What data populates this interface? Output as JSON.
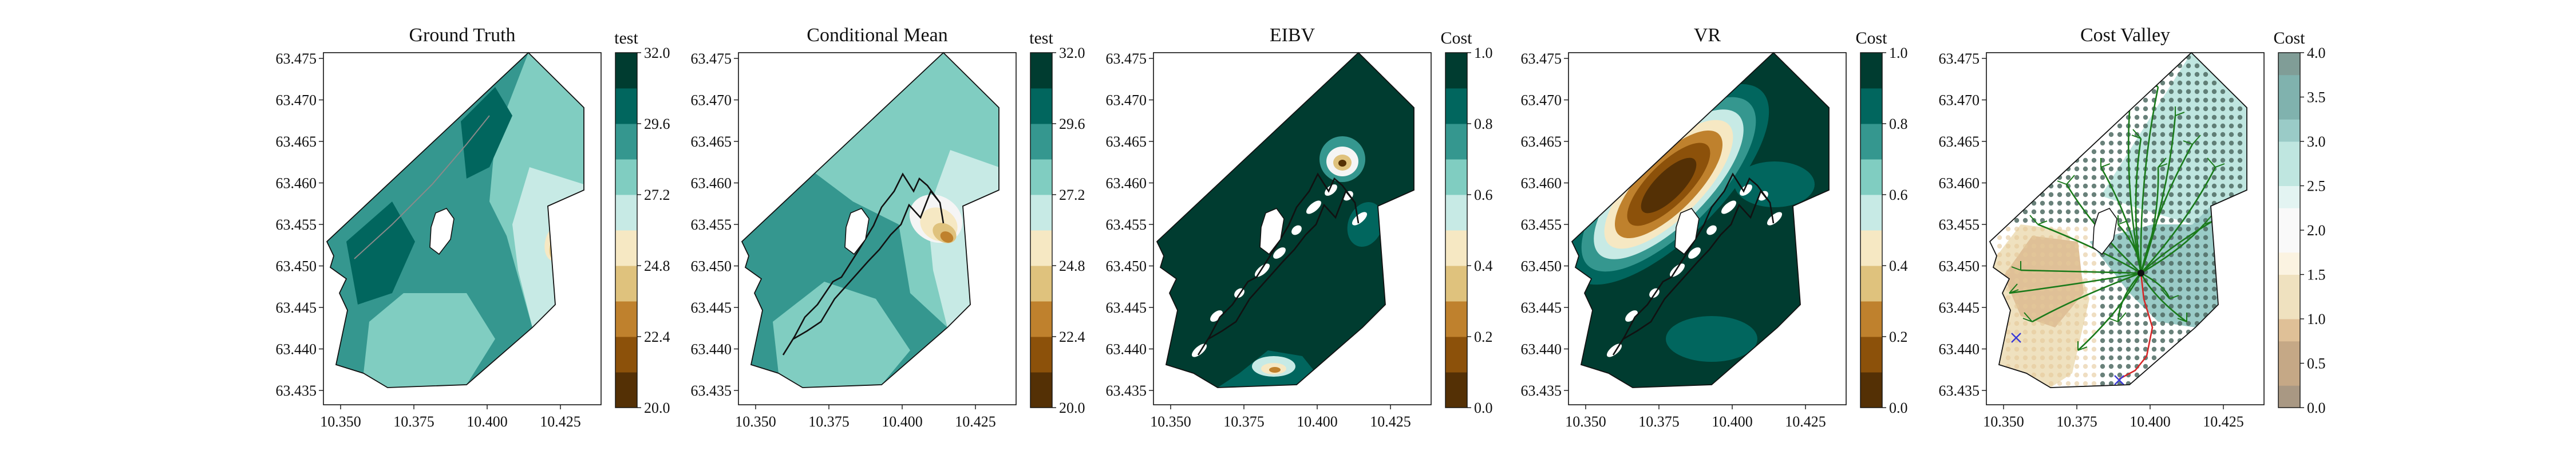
{
  "figure": {
    "panels": [
      {
        "title": "Ground Truth",
        "cbar_label": "test",
        "cbar_ticks": [
          "20.0",
          "22.4",
          "24.8",
          "27.2",
          "29.6",
          "32.0"
        ],
        "cbar_palette": "brbg",
        "field": "truth",
        "overlay": "truth"
      },
      {
        "title": "Conditional Mean",
        "cbar_label": "test",
        "cbar_ticks": [
          "20.0",
          "22.4",
          "24.8",
          "27.2",
          "29.6",
          "32.0"
        ],
        "cbar_palette": "brbg",
        "field": "mean",
        "overlay": "paths"
      },
      {
        "title": "EIBV",
        "cbar_label": "Cost",
        "cbar_ticks": [
          "0.0",
          "0.2",
          "0.4",
          "0.6",
          "0.8",
          "1.0"
        ],
        "cbar_palette": "brbg",
        "field": "eibv",
        "overlay": "paths-white"
      },
      {
        "title": "VR",
        "cbar_label": "Cost",
        "cbar_ticks": [
          "0.0",
          "0.2",
          "0.4",
          "0.6",
          "0.8",
          "1.0"
        ],
        "cbar_palette": "brbg",
        "field": "vr",
        "overlay": "paths-white"
      },
      {
        "title": "Cost Valley",
        "cbar_label": "Cost",
        "cbar_ticks": [
          "0.0",
          "0.5",
          "1.0",
          "1.5",
          "2.0",
          "2.5",
          "3.0",
          "3.5",
          "4.0"
        ],
        "cbar_palette": "brbg-light",
        "field": "valley",
        "overlay": "valley"
      }
    ],
    "x_ticks": [
      "10.350",
      "10.375",
      "10.400",
      "10.425"
    ],
    "y_ticks": [
      "63.475",
      "63.470",
      "63.465",
      "63.460",
      "63.455",
      "63.450",
      "63.445",
      "63.440",
      "63.435"
    ]
  },
  "chart_data": [
    {
      "type": "heatmap",
      "title": "Ground Truth",
      "colorbar_label": "test",
      "colorbar_range": [
        20.0,
        32.0
      ],
      "xlim": [
        10.345,
        10.44
      ],
      "ylim": [
        63.432,
        63.476
      ]
    },
    {
      "type": "heatmap",
      "title": "Conditional Mean",
      "colorbar_label": "test",
      "colorbar_range": [
        20.0,
        32.0
      ],
      "xlim": [
        10.345,
        10.44
      ],
      "ylim": [
        63.432,
        63.476
      ]
    },
    {
      "type": "heatmap",
      "title": "EIBV",
      "colorbar_label": "Cost",
      "colorbar_range": [
        0.0,
        1.0
      ],
      "xlim": [
        10.345,
        10.44
      ],
      "ylim": [
        63.432,
        63.476
      ]
    },
    {
      "type": "heatmap",
      "title": "VR",
      "colorbar_label": "Cost",
      "colorbar_range": [
        0.0,
        1.0
      ],
      "xlim": [
        10.345,
        10.44
      ],
      "ylim": [
        63.432,
        63.476
      ]
    },
    {
      "type": "heatmap",
      "title": "Cost Valley",
      "colorbar_label": "Cost",
      "colorbar_range": [
        0.0,
        4.0
      ],
      "xlim": [
        10.345,
        10.44
      ],
      "ylim": [
        63.432,
        63.476
      ]
    }
  ],
  "colors": {
    "brbg": [
      "#543005",
      "#8c510a",
      "#bf812d",
      "#dfc27d",
      "#f6e8c3",
      "#f5f5f5",
      "#c7eae5",
      "#80cdc1",
      "#35978f",
      "#01665e",
      "#003c30"
    ],
    "brbg_light": [
      "#a99883",
      "#c5a886",
      "#dfc097",
      "#efe1bf",
      "#fbf3e1",
      "#f9f9f9",
      "#e3f4f2",
      "#bfe6e0",
      "#9acbc7",
      "#80b2ae",
      "#809d97"
    ],
    "path": "#111111",
    "tree": "#1a7a1a",
    "route": "#d62728",
    "marker": "#3a3ad6"
  }
}
